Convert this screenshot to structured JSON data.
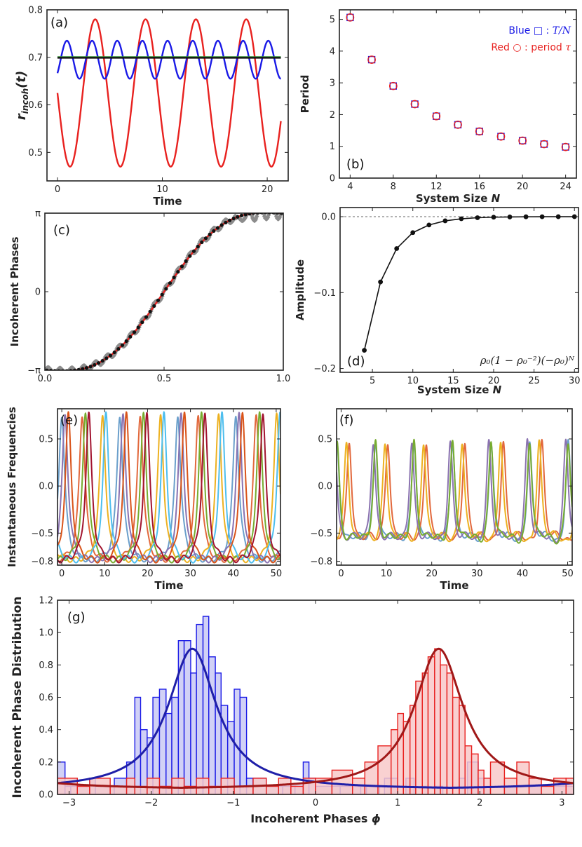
{
  "chart_data": [
    {
      "panel": "a",
      "type": "line",
      "panel_label": "(a)",
      "xlabel": "Time",
      "ylabel": "r_incoh(t)",
      "ylabel_display": "r",
      "ylabel_sub": "incoh",
      "ylabel_arg": "(t)",
      "xlim": [
        -1,
        22
      ],
      "ylim": [
        0.44,
        0.8
      ],
      "xticks": [
        0,
        10,
        20
      ],
      "yticks": [
        0.5,
        0.6,
        0.7,
        0.8
      ],
      "series": [
        {
          "name": "red",
          "color": "#e8211f",
          "formula": "0.625+0.155*cos(2*pi*(t-3.6)/4.8)",
          "t_range": [
            0,
            21.3
          ]
        },
        {
          "name": "blue",
          "color": "#1a1ae6",
          "formula": "0.695+0.04*cos(2*pi*(t-0.9)/2.4)",
          "t_range": [
            0,
            21.3
          ]
        },
        {
          "name": "green",
          "color": "#2e8b2e",
          "formula": "0.700",
          "t_range": [
            0,
            21.3
          ]
        },
        {
          "name": "black",
          "color": "#111111",
          "formula": "0.699",
          "t_range": [
            0,
            21.3
          ]
        }
      ]
    },
    {
      "panel": "b",
      "type": "scatter",
      "panel_label": "(b)",
      "xlabel": "System Size N",
      "xlabel_text": "System Size ",
      "xlabel_var": "N",
      "ylabel": "Period",
      "xlim": [
        3,
        25
      ],
      "ylim": [
        0,
        5.3
      ],
      "xticks": [
        4,
        8,
        12,
        16,
        20,
        24
      ],
      "yticks": [
        0,
        1,
        2,
        3,
        4,
        5
      ],
      "legend": [
        {
          "label": "Blue □ : T/N",
          "label_text": "Blue □ : ",
          "label_math": "T/N",
          "color": "#1a1ae6"
        },
        {
          "label": "Red ○ : period τ",
          "label_text": "Red ○ : period ",
          "label_math": "τ",
          "color": "#e8211f"
        }
      ],
      "x": [
        4,
        6,
        8,
        10,
        12,
        14,
        16,
        18,
        20,
        22,
        24
      ],
      "series": [
        {
          "name": "T/N",
          "marker": "square",
          "color": "#1a1ae6",
          "values": [
            5.06,
            3.73,
            2.9,
            2.33,
            1.95,
            1.68,
            1.47,
            1.31,
            1.18,
            1.07,
            0.98
          ]
        },
        {
          "name": "period tau",
          "marker": "circle",
          "color": "#e8211f",
          "values": [
            5.06,
            3.73,
            2.9,
            2.33,
            1.95,
            1.68,
            1.47,
            1.31,
            1.18,
            1.07,
            0.98
          ]
        }
      ]
    },
    {
      "panel": "c",
      "type": "scatter",
      "panel_label": "(c)",
      "xlabel": "",
      "ylabel": "Incoherent Phases",
      "xlim": [
        0.0,
        1.0
      ],
      "ylim": [
        -3.1416,
        3.1416
      ],
      "xticks": [
        0.0,
        0.5,
        1.0
      ],
      "xtick_labels": [
        "0.0",
        "0.5",
        "1.0"
      ],
      "yticks": [
        -3.1416,
        0,
        3.1416
      ],
      "ytick_labels": [
        "−π",
        "0",
        "π"
      ],
      "series": [
        {
          "name": "theory",
          "type": "line",
          "color": "#e8211f",
          "formula": "2*atan(1.35*tan(pi*(s-0.5)))-0.85*sin(2*pi*s)"
        },
        {
          "name": "simulation",
          "marker": "diamond",
          "color": "#8c8c8c",
          "n_points": 300
        },
        {
          "name": "samples",
          "marker": "circle",
          "color": "#111111",
          "n_points": 60
        }
      ]
    },
    {
      "panel": "d",
      "type": "line",
      "panel_label": "(d)",
      "xlabel": "System Size N",
      "xlabel_text": "System Size ",
      "xlabel_var": "N",
      "ylabel": "Amplitude",
      "annotation": "ρ₀(1 − ρ₀⁻²)(−ρ₀)ᴺ",
      "xlim": [
        1,
        30.5
      ],
      "ylim": [
        -0.205,
        0.012
      ],
      "xticks": [
        5,
        10,
        15,
        20,
        25,
        30
      ],
      "yticks": [
        -0.2,
        -0.1,
        0.0
      ],
      "ytick_labels": [
        "−0.2",
        "−0.1",
        "0.0"
      ],
      "x": [
        4,
        6,
        8,
        10,
        12,
        14,
        16,
        18,
        20,
        22,
        24,
        26,
        28,
        30
      ],
      "series": [
        {
          "name": "amplitude",
          "color": "#111111",
          "values": [
            -0.176,
            -0.086,
            -0.042,
            -0.021,
            -0.011,
            -0.0055,
            -0.0028,
            -0.0014,
            -0.0007,
            -0.0004,
            -0.0002,
            -0.0001,
            -5e-05,
            -2e-05
          ]
        }
      ],
      "reference_line": 0.0
    },
    {
      "panel": "e",
      "type": "line",
      "panel_label": "(e)",
      "xlabel": "Time",
      "ylabel": "Instantaneous Frequencies",
      "xlim": [
        -1,
        51
      ],
      "ylim": [
        -0.84,
        0.82
      ],
      "xticks": [
        0,
        10,
        20,
        30,
        40,
        50
      ],
      "yticks": [
        -0.8,
        -0.5,
        0.0,
        0.5
      ],
      "ytick_labels": [
        "−0.8",
        "−0.5",
        "0.0",
        "0.5"
      ],
      "period": 24.6,
      "n_oscillators": 8,
      "colors": [
        "#6a9fcb",
        "#e2683c",
        "#edb120",
        "#8a72b0",
        "#77ac30",
        "#4dbeee",
        "#d95319",
        "#a2142f"
      ]
    },
    {
      "panel": "f",
      "type": "line",
      "panel_label": "(f)",
      "xlabel": "Time",
      "ylabel": "",
      "xlim": [
        -1,
        51
      ],
      "ylim": [
        -0.84,
        0.82
      ],
      "xticks": [
        0,
        10,
        20,
        30,
        40,
        50
      ],
      "yticks": [
        -0.8,
        -0.5,
        0.0,
        0.5
      ],
      "ytick_labels": [
        "−0.8",
        "−0.5",
        "0.0",
        "0.5"
      ],
      "period": 17.0,
      "colors": [
        "#6a9fcb",
        "#e2683c",
        "#edb120",
        "#8a72b0",
        "#77ac30"
      ]
    },
    {
      "panel": "g",
      "type": "bar",
      "panel_label": "(g)",
      "xlabel": "Incoherent Phases ϕ",
      "xlabel_text": "Incoherent Phases ",
      "xlabel_var": "ϕ",
      "ylabel": "Incoherent Phase Distribution",
      "xlim": [
        -3.1416,
        3.1416
      ],
      "ylim": [
        0,
        1.2
      ],
      "xticks": [
        -3,
        -2,
        -1,
        0,
        1,
        2,
        3
      ],
      "xtick_labels": [
        "−3",
        "−2",
        "−1",
        "0",
        "1",
        "2",
        "3"
      ],
      "yticks": [
        0,
        0.2,
        0.4,
        0.6,
        0.8,
        1.0,
        1.2
      ],
      "ytick_labels": [
        "0.0",
        "0.2",
        "0.4",
        "0.6",
        "0.8",
        "1.0",
        "1.2"
      ],
      "bin_width": 0.0785,
      "series": [
        {
          "name": "blue histogram",
          "color": "#1a1ae6",
          "fill": "#c9c9f5",
          "bins": [
            [
              -3.1416,
              -3.05,
              0.2
            ],
            [
              -3.05,
              -2.98,
              0.05
            ],
            [
              -2.98,
              -2.75,
              0.05
            ],
            [
              -2.75,
              -2.68,
              0.1
            ],
            [
              -2.68,
              -2.45,
              0.05
            ],
            [
              -2.45,
              -2.3,
              0.1
            ],
            [
              -2.3,
              -2.2,
              0.2
            ],
            [
              -2.2,
              -2.13,
              0.6
            ],
            [
              -2.13,
              -2.05,
              0.4
            ],
            [
              -2.05,
              -1.98,
              0.35
            ],
            [
              -1.98,
              -1.9,
              0.6
            ],
            [
              -1.9,
              -1.82,
              0.65
            ],
            [
              -1.82,
              -1.75,
              0.5
            ],
            [
              -1.75,
              -1.67,
              0.6
            ],
            [
              -1.67,
              -1.6,
              0.95
            ],
            [
              -1.6,
              -1.52,
              0.95
            ],
            [
              -1.52,
              -1.45,
              0.75
            ],
            [
              -1.45,
              -1.37,
              1.05
            ],
            [
              -1.37,
              -1.3,
              1.1
            ],
            [
              -1.3,
              -1.22,
              0.85
            ],
            [
              -1.22,
              -1.15,
              0.75
            ],
            [
              -1.15,
              -1.07,
              0.55
            ],
            [
              -1.07,
              -0.99,
              0.45
            ],
            [
              -0.99,
              -0.92,
              0.65
            ],
            [
              -0.92,
              -0.84,
              0.6
            ],
            [
              -0.84,
              -0.76,
              0.1
            ],
            [
              -0.76,
              -0.6,
              0.1
            ],
            [
              -0.6,
              -0.4,
              0.05
            ],
            [
              -0.4,
              -0.25,
              0.05
            ],
            [
              -0.25,
              -0.15,
              0.05
            ],
            [
              -0.15,
              -0.08,
              0.2
            ],
            [
              -0.08,
              0.0,
              0.1
            ],
            [
              0.0,
              0.3,
              0.05
            ],
            [
              0.3,
              0.55,
              0.05
            ],
            [
              0.55,
              0.62,
              0.05
            ],
            [
              0.62,
              0.78,
              0.05
            ],
            [
              0.84,
              1.0,
              0.1
            ],
            [
              1.1,
              1.2,
              0.1
            ],
            [
              1.3,
              1.37,
              0.05
            ],
            [
              1.45,
              1.55,
              0.05
            ],
            [
              1.75,
              1.82,
              0.1
            ],
            [
              1.85,
              1.98,
              0.2
            ],
            [
              1.98,
              2.05,
              0.1
            ],
            [
              2.05,
              2.13,
              0.05
            ],
            [
              2.3,
              2.45,
              0.05
            ],
            [
              2.6,
              2.75,
              0.05
            ],
            [
              2.9,
              3.05,
              0.05
            ],
            [
              3.05,
              3.1416,
              0.05
            ]
          ]
        },
        {
          "name": "red histogram",
          "color": "#e8211f",
          "fill": "#f8c9c9",
          "bins": [
            [
              -3.1416,
              -2.9,
              0.1
            ],
            [
              -2.9,
              -2.75,
              0.05
            ],
            [
              -2.75,
              -2.5,
              0.1
            ],
            [
              -2.5,
              -2.3,
              0.05
            ],
            [
              -2.3,
              -2.2,
              0.1
            ],
            [
              -2.2,
              -2.05,
              0.05
            ],
            [
              -2.05,
              -1.9,
              0.1
            ],
            [
              -1.9,
              -1.75,
              0.05
            ],
            [
              -1.75,
              -1.6,
              0.1
            ],
            [
              -1.6,
              -1.45,
              0.05
            ],
            [
              -1.45,
              -1.3,
              0.1
            ],
            [
              -1.3,
              -1.15,
              0.05
            ],
            [
              -1.15,
              -0.99,
              0.1
            ],
            [
              -0.99,
              -0.76,
              0.05
            ],
            [
              -0.76,
              -0.6,
              0.1
            ],
            [
              -0.6,
              -0.45,
              0.05
            ],
            [
              -0.45,
              -0.3,
              0.1
            ],
            [
              -0.3,
              -0.15,
              0.05
            ],
            [
              -0.15,
              0.0,
              0.1
            ],
            [
              0.0,
              0.2,
              0.1
            ],
            [
              0.2,
              0.45,
              0.15
            ],
            [
              0.45,
              0.6,
              0.1
            ],
            [
              0.6,
              0.76,
              0.2
            ],
            [
              0.76,
              0.92,
              0.3
            ],
            [
              0.92,
              1.0,
              0.4
            ],
            [
              1.0,
              1.07,
              0.5
            ],
            [
              1.07,
              1.15,
              0.45
            ],
            [
              1.15,
              1.22,
              0.55
            ],
            [
              1.22,
              1.3,
              0.7
            ],
            [
              1.3,
              1.37,
              0.75
            ],
            [
              1.37,
              1.45,
              0.85
            ],
            [
              1.45,
              1.52,
              0.9
            ],
            [
              1.52,
              1.6,
              0.8
            ],
            [
              1.6,
              1.67,
              0.75
            ],
            [
              1.67,
              1.75,
              0.6
            ],
            [
              1.75,
              1.82,
              0.55
            ],
            [
              1.82,
              1.9,
              0.3
            ],
            [
              1.9,
              1.98,
              0.25
            ],
            [
              1.98,
              2.05,
              0.15
            ],
            [
              2.05,
              2.13,
              0.1
            ],
            [
              2.13,
              2.3,
              0.2
            ],
            [
              2.3,
              2.45,
              0.1
            ],
            [
              2.45,
              2.6,
              0.2
            ],
            [
              2.6,
              2.75,
              0.1
            ],
            [
              2.75,
              2.9,
              0.05
            ],
            [
              2.9,
              3.05,
              0.1
            ],
            [
              3.05,
              3.1416,
              0.1
            ]
          ]
        }
      ],
      "curves": [
        {
          "name": "blue fit",
          "color": "#1f1fa8",
          "center": -1.5,
          "height": 0.9,
          "width": 0.36
        },
        {
          "name": "red fit",
          "color": "#a01818",
          "center": 1.5,
          "height": 0.9,
          "width": 0.36
        }
      ]
    }
  ]
}
